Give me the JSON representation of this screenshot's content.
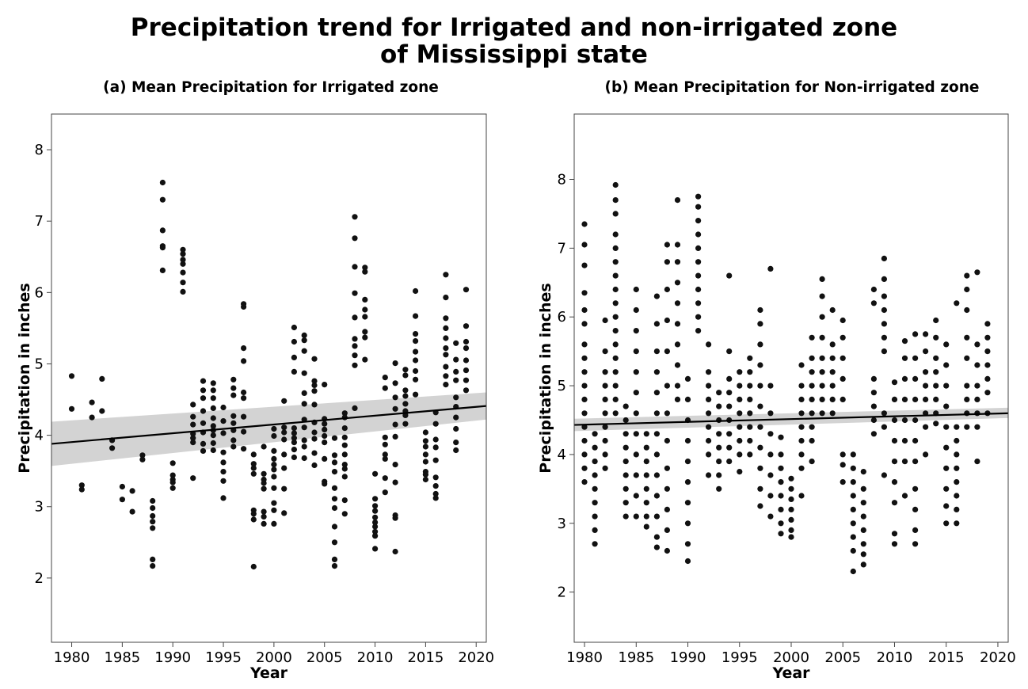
{
  "figure_title_line1": "Precipitation trend for Irrigated and non-irrigated zone",
  "figure_title_line2": "of Mississippi state",
  "chart_data": [
    {
      "type": "scatter",
      "title": "(a) Mean Precipitation for Irrigated zone",
      "xlabel": "Year",
      "ylabel": "Precipitation in inches",
      "xlim": [
        1978,
        2021
      ],
      "ylim": [
        1.1,
        8.5
      ],
      "xticks": [
        1980,
        1985,
        1990,
        1995,
        2000,
        2005,
        2010,
        2015,
        2020
      ],
      "yticks": [
        2,
        3,
        4,
        5,
        6,
        7,
        8
      ],
      "grid": false,
      "trend": {
        "x": [
          1978,
          2021
        ],
        "y": [
          3.88,
          4.41
        ],
        "ci_low": [
          3.57,
          4.22
        ],
        "ci_high": [
          4.19,
          4.6
        ]
      },
      "points": [
        {
          "year": 1980,
          "values": [
            4.83,
            4.37
          ]
        },
        {
          "year": 1981,
          "values": [
            3.3,
            3.24
          ]
        },
        {
          "year": 1982,
          "values": [
            4.46,
            4.25
          ]
        },
        {
          "year": 1983,
          "values": [
            4.79,
            4.34
          ]
        },
        {
          "year": 1984,
          "values": [
            3.93,
            3.82
          ]
        },
        {
          "year": 1985,
          "values": [
            3.28,
            3.1
          ]
        },
        {
          "year": 1986,
          "values": [
            3.22,
            2.93
          ]
        },
        {
          "year": 1987,
          "values": [
            3.72,
            3.66
          ]
        },
        {
          "year": 1988,
          "values": [
            3.08,
            2.98,
            2.87,
            2.79,
            2.7,
            2.26,
            2.17
          ]
        },
        {
          "year": 1989,
          "values": [
            7.54,
            7.3,
            6.87,
            6.65,
            6.63,
            6.31
          ]
        },
        {
          "year": 1990,
          "values": [
            3.61,
            3.44,
            3.38,
            3.34,
            3.26
          ]
        },
        {
          "year": 1991,
          "values": [
            6.6,
            6.54,
            6.46,
            6.4,
            6.28,
            6.14,
            6.01
          ]
        },
        {
          "year": 1992,
          "values": [
            4.43,
            4.26,
            4.15,
            4.02,
            3.96,
            3.9,
            3.4
          ]
        },
        {
          "year": 1993,
          "values": [
            4.76,
            4.63,
            4.52,
            4.34,
            4.17,
            4.04,
            3.88,
            3.78
          ]
        },
        {
          "year": 1994,
          "values": [
            4.73,
            4.63,
            4.52,
            4.38,
            4.24,
            4.13,
            4.07,
            4.0,
            3.89,
            3.79
          ]
        },
        {
          "year": 1995,
          "values": [
            4.39,
            4.2,
            4.03,
            3.76,
            3.62,
            3.49,
            3.36,
            3.12
          ]
        },
        {
          "year": 1996,
          "values": [
            4.78,
            4.66,
            4.56,
            4.27,
            4.17,
            4.07,
            3.93,
            3.84
          ]
        },
        {
          "year": 1997,
          "values": [
            5.84,
            5.8,
            5.22,
            5.04,
            4.6,
            4.52,
            4.26,
            4.05,
            3.81
          ]
        },
        {
          "year": 1998,
          "values": [
            3.73,
            3.6,
            3.54,
            3.46,
            2.95,
            2.9,
            2.82,
            2.16
          ]
        },
        {
          "year": 1999,
          "values": [
            3.84,
            3.46,
            3.38,
            3.33,
            3.25,
            2.93,
            2.86,
            2.76
          ]
        },
        {
          "year": 2000,
          "values": [
            4.09,
            3.99,
            3.78,
            3.67,
            3.59,
            3.52,
            3.42,
            3.26,
            3.05,
            2.95,
            2.76
          ]
        },
        {
          "year": 2001,
          "values": [
            4.48,
            4.11,
            4.04,
            3.94,
            3.73,
            3.54,
            3.25,
            2.91
          ]
        },
        {
          "year": 2002,
          "values": [
            5.51,
            5.31,
            5.09,
            4.89,
            4.1,
            4.03,
            3.96,
            3.9,
            3.8,
            3.69
          ]
        },
        {
          "year": 2003,
          "values": [
            5.4,
            5.33,
            5.18,
            4.87,
            4.59,
            4.44,
            4.22,
            4.11,
            3.93,
            3.84,
            3.68
          ]
        },
        {
          "year": 2004,
          "values": [
            5.07,
            4.76,
            4.7,
            4.62,
            4.43,
            4.18,
            4.04,
            3.95,
            3.75,
            3.58
          ]
        },
        {
          "year": 2005,
          "values": [
            4.71,
            4.23,
            4.16,
            4.08,
            3.99,
            3.9,
            3.67,
            3.35,
            3.32
          ]
        },
        {
          "year": 2006,
          "values": [
            3.96,
            3.72,
            3.62,
            3.49,
            3.26,
            3.11,
            2.98,
            2.72,
            2.5,
            2.26,
            2.17
          ]
        },
        {
          "year": 2007,
          "values": [
            4.31,
            4.25,
            4.1,
            3.97,
            3.86,
            3.73,
            3.59,
            3.53,
            3.42,
            3.09,
            2.9
          ]
        },
        {
          "year": 2008,
          "values": [
            7.06,
            6.76,
            6.36,
            5.99,
            5.65,
            5.35,
            5.25,
            5.12,
            4.98,
            4.38
          ]
        },
        {
          "year": 2009,
          "values": [
            6.35,
            6.29,
            5.9,
            5.76,
            5.66,
            5.45,
            5.37,
            5.06
          ]
        },
        {
          "year": 2010,
          "values": [
            3.46,
            3.11,
            3.01,
            2.94,
            2.85,
            2.78,
            2.72,
            2.65,
            2.59,
            2.41
          ]
        },
        {
          "year": 2011,
          "values": [
            4.81,
            4.66,
            3.97,
            3.87,
            3.73,
            3.67,
            3.4,
            3.2
          ]
        },
        {
          "year": 2012,
          "values": [
            5.01,
            4.73,
            4.53,
            4.37,
            4.15,
            3.98,
            3.59,
            3.34,
            2.88,
            2.84,
            2.37
          ]
        },
        {
          "year": 2013,
          "values": [
            4.92,
            4.84,
            4.63,
            4.55,
            4.44,
            4.34,
            4.28,
            4.16
          ]
        },
        {
          "year": 2014,
          "values": [
            6.02,
            5.67,
            5.42,
            5.32,
            5.17,
            5.05,
            4.9,
            4.78,
            4.57
          ]
        },
        {
          "year": 2015,
          "values": [
            4.04,
            3.92,
            3.84,
            3.73,
            3.63,
            3.49,
            3.45,
            3.38
          ]
        },
        {
          "year": 2016,
          "values": [
            4.32,
            4.16,
            3.94,
            3.83,
            3.65,
            3.41,
            3.29,
            3.18,
            3.12
          ]
        },
        {
          "year": 2017,
          "values": [
            6.25,
            5.93,
            5.64,
            5.5,
            5.36,
            5.22,
            5.13,
            4.96,
            4.83,
            4.71
          ]
        },
        {
          "year": 2018,
          "values": [
            5.29,
            5.06,
            4.89,
            4.77,
            4.53,
            4.4,
            4.25,
            4.09,
            3.9,
            3.79
          ]
        },
        {
          "year": 2019,
          "values": [
            6.04,
            5.53,
            5.31,
            5.22,
            5.05,
            4.91,
            4.77,
            4.63
          ]
        }
      ]
    },
    {
      "type": "scatter",
      "title": "(b) Mean Precipitation for Non-irrigated zone",
      "xlabel": "Year",
      "ylabel": "Precipitation in inches",
      "xlim": [
        1979,
        2021
      ],
      "ylim": [
        1.27,
        8.95
      ],
      "xticks": [
        1980,
        1985,
        1990,
        1995,
        2000,
        2005,
        2010,
        2015,
        2020
      ],
      "yticks": [
        2,
        3,
        4,
        5,
        6,
        7,
        8
      ],
      "grid": false,
      "trend": {
        "x": [
          1979,
          2021
        ],
        "y": [
          4.43,
          4.6
        ],
        "ci_low": [
          4.34,
          4.53
        ],
        "ci_high": [
          4.52,
          4.68
        ]
      },
      "points": [
        {
          "year": 1980,
          "values": [
            7.35,
            7.05,
            6.75,
            6.35,
            6.1,
            5.9,
            5.6,
            5.4,
            5.2,
            5.0,
            4.8,
            4.6,
            4.4,
            4.2,
            4.0,
            3.8,
            3.6
          ]
        },
        {
          "year": 1981,
          "values": [
            4.3,
            4.1,
            3.9,
            3.7,
            3.5,
            3.3,
            3.1,
            2.9,
            2.7
          ]
        },
        {
          "year": 1982,
          "values": [
            5.95,
            5.5,
            5.2,
            5.0,
            4.8,
            4.6,
            4.4,
            4.2,
            4.0,
            3.8
          ]
        },
        {
          "year": 1983,
          "values": [
            7.92,
            7.7,
            7.5,
            7.2,
            7.0,
            6.8,
            6.6,
            6.4,
            6.2,
            6.0,
            5.8,
            5.6,
            5.4,
            5.2,
            5.0,
            4.8,
            4.6
          ]
        },
        {
          "year": 1984,
          "values": [
            4.7,
            4.5,
            4.3,
            4.1,
            3.9,
            3.7,
            3.5,
            3.3,
            3.1
          ]
        },
        {
          "year": 1985,
          "values": [
            6.4,
            6.1,
            5.8,
            5.5,
            5.2,
            4.9,
            4.6,
            4.3,
            4.0,
            3.7,
            3.4,
            3.1
          ]
        },
        {
          "year": 1986,
          "values": [
            4.3,
            4.1,
            3.9,
            3.7,
            3.5,
            3.3,
            3.1,
            2.95
          ]
        },
        {
          "year": 1987,
          "values": [
            6.3,
            5.9,
            5.5,
            5.2,
            4.9,
            4.6,
            4.3,
            4.0,
            3.7,
            3.4,
            3.1,
            2.8,
            2.65
          ]
        },
        {
          "year": 1988,
          "values": [
            7.05,
            6.8,
            6.4,
            5.95,
            5.5,
            5.0,
            4.6,
            4.2,
            3.8,
            3.5,
            3.2,
            2.9,
            2.6
          ]
        },
        {
          "year": 1989,
          "values": [
            7.7,
            7.05,
            6.8,
            6.5,
            6.2,
            5.9,
            5.6,
            5.3,
            5.0,
            4.8
          ]
        },
        {
          "year": 1990,
          "values": [
            5.1,
            4.8,
            4.5,
            4.2,
            3.9,
            3.6,
            3.3,
            3.0,
            2.7,
            2.45
          ]
        },
        {
          "year": 1991,
          "values": [
            7.75,
            7.6,
            7.4,
            7.2,
            7.0,
            6.8,
            6.6,
            6.4,
            6.2,
            6.0,
            5.8
          ]
        },
        {
          "year": 1992,
          "values": [
            5.6,
            5.2,
            5.0,
            4.8,
            4.6,
            4.4,
            4.2,
            4.0,
            3.7
          ]
        },
        {
          "year": 1993,
          "values": [
            4.9,
            4.7,
            4.5,
            4.3,
            4.1,
            3.9,
            3.7,
            3.5
          ]
        },
        {
          "year": 1994,
          "values": [
            6.6,
            5.5,
            5.1,
            4.9,
            4.7,
            4.5,
            4.3,
            4.1,
            3.9
          ]
        },
        {
          "year": 1995,
          "values": [
            5.2,
            5.0,
            4.8,
            4.6,
            4.4,
            4.2,
            4.0,
            3.75
          ]
        },
        {
          "year": 1996,
          "values": [
            5.4,
            5.2,
            5.0,
            4.8,
            4.6,
            4.4,
            4.2,
            4.0
          ]
        },
        {
          "year": 1997,
          "values": [
            6.1,
            5.9,
            5.6,
            5.3,
            5.0,
            4.7,
            4.4,
            4.1,
            3.8,
            3.5,
            3.25
          ]
        },
        {
          "year": 1998,
          "values": [
            6.7,
            5.0,
            4.6,
            4.3,
            4.0,
            3.7,
            3.4,
            3.1
          ]
        },
        {
          "year": 1999,
          "values": [
            4.25,
            4.0,
            3.8,
            3.6,
            3.4,
            3.2,
            3.0,
            2.85
          ]
        },
        {
          "year": 2000,
          "values": [
            3.65,
            3.5,
            3.35,
            3.2,
            3.05,
            2.9,
            2.8
          ]
        },
        {
          "year": 2001,
          "values": [
            5.3,
            5.0,
            4.8,
            4.6,
            4.4,
            4.2,
            4.0,
            3.8,
            3.4
          ]
        },
        {
          "year": 2002,
          "values": [
            5.7,
            5.4,
            5.2,
            5.0,
            4.8,
            4.6,
            4.4,
            4.2,
            3.9
          ]
        },
        {
          "year": 2003,
          "values": [
            6.55,
            6.3,
            6.0,
            5.7,
            5.4,
            5.2,
            5.0,
            4.8,
            4.6
          ]
        },
        {
          "year": 2004,
          "values": [
            6.1,
            5.6,
            5.4,
            5.2,
            5.0,
            4.8,
            4.6
          ]
        },
        {
          "year": 2005,
          "values": [
            5.95,
            5.7,
            5.4,
            5.1,
            4.8,
            4.0,
            3.85,
            3.6
          ]
        },
        {
          "year": 2006,
          "values": [
            4.0,
            3.8,
            3.6,
            3.4,
            3.2,
            3.0,
            2.8,
            2.6,
            2.3
          ]
        },
        {
          "year": 2007,
          "values": [
            3.75,
            3.5,
            3.3,
            3.1,
            2.9,
            2.7,
            2.55,
            2.4
          ]
        },
        {
          "year": 2008,
          "values": [
            6.4,
            6.2,
            5.1,
            4.9,
            4.7,
            4.5,
            4.3
          ]
        },
        {
          "year": 2009,
          "values": [
            6.85,
            6.55,
            6.3,
            6.1,
            5.9,
            5.7,
            5.5,
            4.6,
            4.4,
            3.7
          ]
        },
        {
          "year": 2010,
          "values": [
            5.05,
            4.8,
            4.5,
            4.2,
            3.9,
            3.6,
            3.3,
            2.85,
            2.7
          ]
        },
        {
          "year": 2011,
          "values": [
            5.65,
            5.4,
            5.1,
            4.8,
            4.5,
            4.2,
            3.9,
            3.4
          ]
        },
        {
          "year": 2012,
          "values": [
            5.75,
            5.4,
            5.1,
            4.8,
            4.5,
            4.2,
            3.9,
            3.5,
            3.2,
            2.9,
            2.7
          ]
        },
        {
          "year": 2013,
          "values": [
            5.75,
            5.5,
            5.2,
            5.0,
            4.8,
            4.6,
            4.4,
            4.0
          ]
        },
        {
          "year": 2014,
          "values": [
            5.95,
            5.7,
            5.4,
            5.2,
            5.0,
            4.8,
            4.6,
            4.45
          ]
        },
        {
          "year": 2015,
          "values": [
            5.6,
            5.3,
            5.0,
            4.7,
            4.4,
            4.1,
            3.8,
            3.5,
            3.25,
            3.0
          ]
        },
        {
          "year": 2016,
          "values": [
            6.2,
            4.4,
            4.2,
            4.0,
            3.8,
            3.6,
            3.4,
            3.2,
            3.0
          ]
        },
        {
          "year": 2017,
          "values": [
            6.6,
            6.4,
            6.1,
            5.7,
            5.4,
            5.0,
            4.8,
            4.6,
            4.4
          ]
        },
        {
          "year": 2018,
          "values": [
            6.65,
            5.6,
            5.3,
            5.0,
            4.8,
            4.6,
            4.4,
            3.9
          ]
        },
        {
          "year": 2019,
          "values": [
            5.9,
            5.7,
            5.5,
            5.3,
            5.1,
            4.9,
            4.6
          ]
        }
      ]
    }
  ]
}
